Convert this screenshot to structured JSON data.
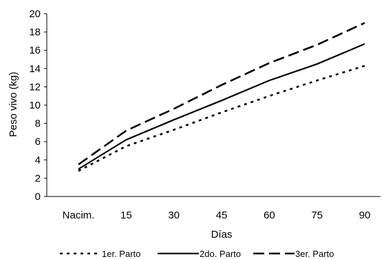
{
  "chart_data": {
    "type": "line",
    "xlabel": "Días",
    "ylabel": "Peso vivo (kg)",
    "categories": [
      "Nacim.",
      "15",
      "30",
      "45",
      "60",
      "75",
      "90"
    ],
    "ylim": [
      0,
      20
    ],
    "yticks": [
      0,
      2,
      4,
      6,
      8,
      10,
      12,
      14,
      16,
      18,
      20
    ],
    "grid": false,
    "legend_position": "bottom",
    "series": [
      {
        "name": "1er. Parto",
        "style": "dotted",
        "values": [
          2.8,
          5.5,
          7.3,
          9.2,
          11.0,
          12.7,
          14.3
        ]
      },
      {
        "name": "2do. Parto",
        "style": "solid",
        "values": [
          3.0,
          6.2,
          8.4,
          10.5,
          12.7,
          14.5,
          16.7
        ]
      },
      {
        "name": "3er. Parto",
        "style": "dashed",
        "values": [
          3.5,
          7.2,
          9.6,
          12.2,
          14.6,
          16.6,
          19.0
        ]
      }
    ],
    "colors": {
      "lines": "#000000",
      "axis": "#000000",
      "background": "#ffffff"
    }
  }
}
